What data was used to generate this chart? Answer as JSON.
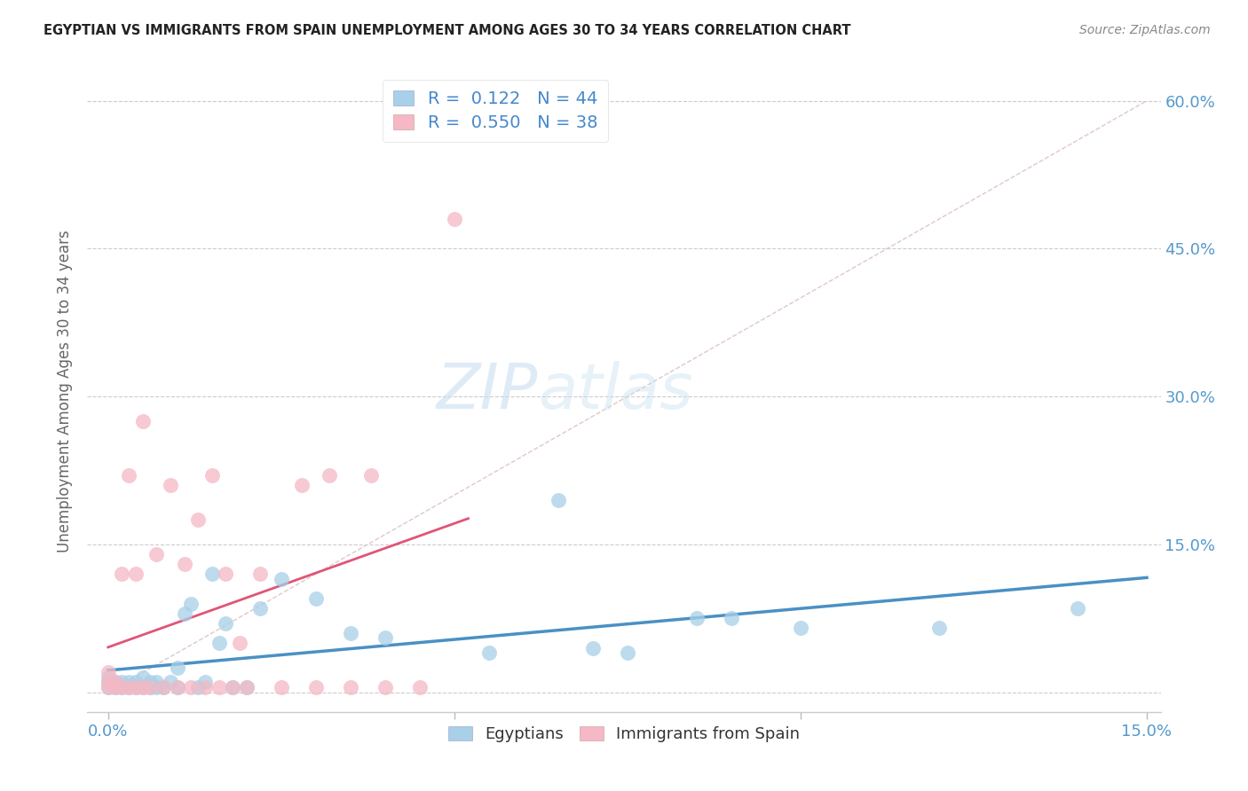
{
  "title": "EGYPTIAN VS IMMIGRANTS FROM SPAIN UNEMPLOYMENT AMONG AGES 30 TO 34 YEARS CORRELATION CHART",
  "source": "Source: ZipAtlas.com",
  "ylabel": "Unemployment Among Ages 30 to 34 years",
  "xlim": [
    0.0,
    0.15
  ],
  "ylim": [
    0.0,
    0.63
  ],
  "R_egyptians": 0.122,
  "N_egyptians": 44,
  "R_spain": 0.55,
  "N_spain": 38,
  "color_egyptians": "#a8d0e8",
  "color_spain": "#f5b8c4",
  "line_color_egyptians": "#4a90c4",
  "line_color_spain": "#e05575",
  "diagonal_color": "#d8d8d8",
  "watermark_zip": "ZIP",
  "watermark_atlas": "atlas",
  "eg_x": [
    0.0,
    0.0,
    0.0,
    0.001,
    0.001,
    0.002,
    0.002,
    0.003,
    0.003,
    0.004,
    0.004,
    0.005,
    0.005,
    0.006,
    0.006,
    0.007,
    0.007,
    0.008,
    0.009,
    0.01,
    0.01,
    0.011,
    0.012,
    0.013,
    0.014,
    0.015,
    0.016,
    0.017,
    0.018,
    0.02,
    0.022,
    0.025,
    0.03,
    0.035,
    0.04,
    0.055,
    0.065,
    0.07,
    0.075,
    0.085,
    0.09,
    0.1,
    0.12,
    0.14
  ],
  "eg_y": [
    0.005,
    0.01,
    0.015,
    0.005,
    0.01,
    0.005,
    0.01,
    0.005,
    0.01,
    0.005,
    0.01,
    0.005,
    0.015,
    0.005,
    0.01,
    0.005,
    0.01,
    0.005,
    0.01,
    0.005,
    0.025,
    0.08,
    0.09,
    0.005,
    0.01,
    0.12,
    0.05,
    0.07,
    0.005,
    0.005,
    0.085,
    0.115,
    0.095,
    0.06,
    0.055,
    0.04,
    0.195,
    0.045,
    0.04,
    0.075,
    0.075,
    0.065,
    0.065,
    0.085
  ],
  "sp_x": [
    0.0,
    0.0,
    0.0,
    0.001,
    0.001,
    0.002,
    0.002,
    0.003,
    0.003,
    0.004,
    0.004,
    0.005,
    0.005,
    0.006,
    0.007,
    0.008,
    0.009,
    0.01,
    0.011,
    0.012,
    0.013,
    0.014,
    0.015,
    0.016,
    0.017,
    0.018,
    0.019,
    0.02,
    0.022,
    0.025,
    0.028,
    0.03,
    0.032,
    0.035,
    0.038,
    0.04,
    0.045,
    0.05
  ],
  "sp_y": [
    0.005,
    0.01,
    0.02,
    0.005,
    0.01,
    0.12,
    0.005,
    0.005,
    0.22,
    0.005,
    0.12,
    0.005,
    0.275,
    0.005,
    0.14,
    0.005,
    0.21,
    0.005,
    0.13,
    0.005,
    0.175,
    0.005,
    0.22,
    0.005,
    0.12,
    0.005,
    0.05,
    0.005,
    0.12,
    0.005,
    0.21,
    0.005,
    0.22,
    0.005,
    0.22,
    0.005,
    0.005,
    0.48
  ]
}
